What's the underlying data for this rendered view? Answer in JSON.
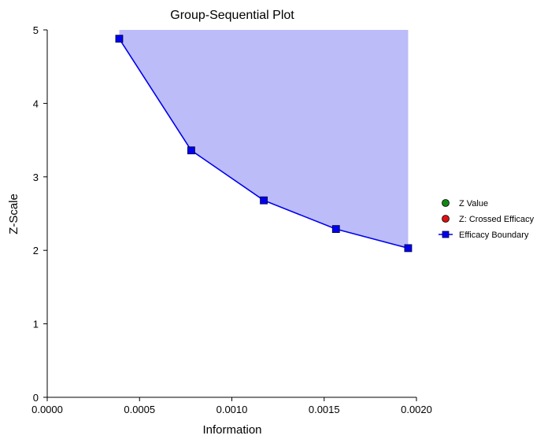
{
  "chart_data": {
    "type": "line",
    "title": "Group-Sequential Plot",
    "xlabel": "Information",
    "ylabel": "Z-Scale",
    "xlim": [
      0,
      0.002
    ],
    "ylim": [
      0,
      5
    ],
    "x_ticks": [
      "0.0000",
      "0.0005",
      "0.0010",
      "0.0015",
      "0.0020"
    ],
    "y_ticks": [
      "0",
      "1",
      "2",
      "3",
      "4",
      "5"
    ],
    "x_tick_values": [
      0,
      0.0005,
      0.001,
      0.0015,
      0.002
    ],
    "y_tick_values": [
      0,
      1,
      2,
      3,
      4,
      5
    ],
    "grid": false,
    "legend_position": "right",
    "series": [
      {
        "name": "Z Value",
        "marker": "circle",
        "color": "#118811",
        "values": []
      },
      {
        "name": "Z: Crossed Efficacy",
        "marker": "circle",
        "color": "#dd1111",
        "values": []
      },
      {
        "name": "Efficacy Boundary",
        "marker": "square",
        "color": "#0000ee",
        "x": [
          0.00039,
          0.00078,
          0.001173,
          0.001564,
          0.001955
        ],
        "y": [
          4.88,
          3.36,
          2.68,
          2.29,
          2.03
        ]
      }
    ],
    "rejection_region_fill": "#bcbcf9"
  }
}
